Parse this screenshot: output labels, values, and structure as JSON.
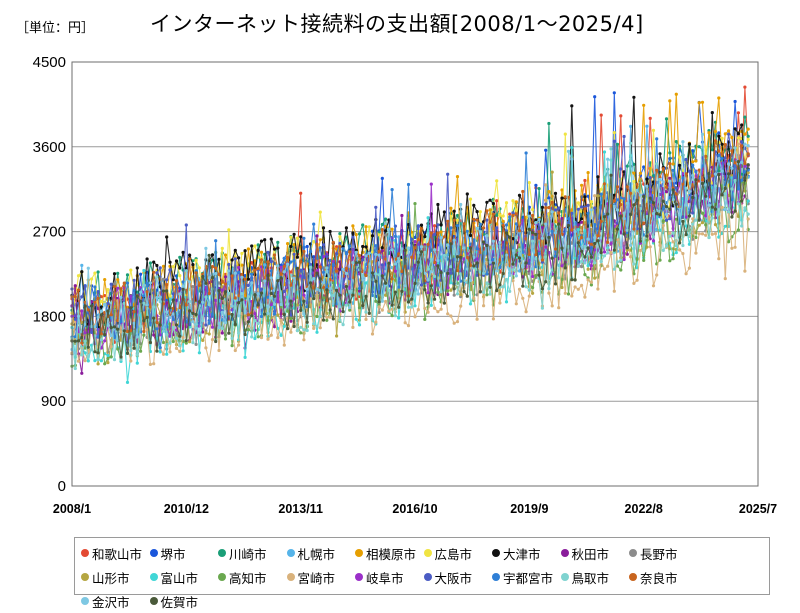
{
  "unit_label": "［単位：円］",
  "chart_data": {
    "type": "line",
    "title": "インターネット接続料の支出額[2008/1～2025/4]",
    "xlabel": "",
    "ylabel": "",
    "ylim": [
      0,
      4500
    ],
    "yticks": [
      0,
      900,
      1800,
      2700,
      3600,
      4500
    ],
    "xticks": [
      "2008/1",
      "2010/12",
      "2013/11",
      "2016/10",
      "2019/9",
      "2022/8",
      "2025/7"
    ],
    "x_start": "2008/1",
    "x_end": "2025/7",
    "x_range_months": 210,
    "months": 208,
    "grid": true,
    "legend_position": "bottom",
    "series": [
      {
        "name": "和歌山市",
        "color": "#e34a33",
        "start": 1750,
        "end": 3050,
        "peak": 4050
      },
      {
        "name": "堺市",
        "color": "#1a56db",
        "start": 1800,
        "end": 3150,
        "peak": 4250
      },
      {
        "name": "川崎市",
        "color": "#1a9e77",
        "start": 1900,
        "end": 3250,
        "peak": 3950
      },
      {
        "name": "札幌市",
        "color": "#56b4e9",
        "start": 1750,
        "end": 2950,
        "peak": 3850
      },
      {
        "name": "相模原市",
        "color": "#e69f00",
        "start": 1850,
        "end": 3200,
        "peak": 4200
      },
      {
        "name": "広島市",
        "color": "#f0e442",
        "start": 1950,
        "end": 3100,
        "peak": 3800
      },
      {
        "name": "大津市",
        "color": "#111111",
        "start": 1950,
        "end": 3200,
        "peak": 4150
      },
      {
        "name": "秋田市",
        "color": "#8a1d9b",
        "start": 1650,
        "end": 2850,
        "peak": 3300
      },
      {
        "name": "長野市",
        "color": "#8c8c8c",
        "start": 1600,
        "end": 2800,
        "peak": 3250
      },
      {
        "name": "山形市",
        "color": "#b5a642",
        "start": 1550,
        "end": 2750,
        "peak": 3500
      },
      {
        "name": "富山市",
        "color": "#40d6d6",
        "start": 1500,
        "end": 2700,
        "peak": 3600
      },
      {
        "name": "高知市",
        "color": "#6aa84f",
        "start": 1550,
        "end": 2650,
        "peak": 3550
      },
      {
        "name": "宮崎市",
        "color": "#d9b27c",
        "start": 1500,
        "end": 2450,
        "peak": 3300
      },
      {
        "name": "岐阜市",
        "color": "#9b30c9",
        "start": 1700,
        "end": 2900,
        "peak": 3450
      },
      {
        "name": "大阪市",
        "color": "#4b5cc4",
        "start": 1800,
        "end": 3050,
        "peak": 3750
      },
      {
        "name": "宇都宮市",
        "color": "#2f7fd6",
        "start": 1750,
        "end": 3000,
        "peak": 3700
      },
      {
        "name": "鳥取市",
        "color": "#7fd3d0",
        "start": 1550,
        "end": 2750,
        "peak": 3650
      },
      {
        "name": "奈良市",
        "color": "#c8641e",
        "start": 1800,
        "end": 3100,
        "peak": 3950
      },
      {
        "name": "金沢市",
        "color": "#7ec8e3",
        "start": 1700,
        "end": 2950,
        "peak": 3700
      },
      {
        "name": "佐賀市",
        "color": "#4a5a3a",
        "start": 1600,
        "end": 2800,
        "peak": 3350
      }
    ]
  }
}
